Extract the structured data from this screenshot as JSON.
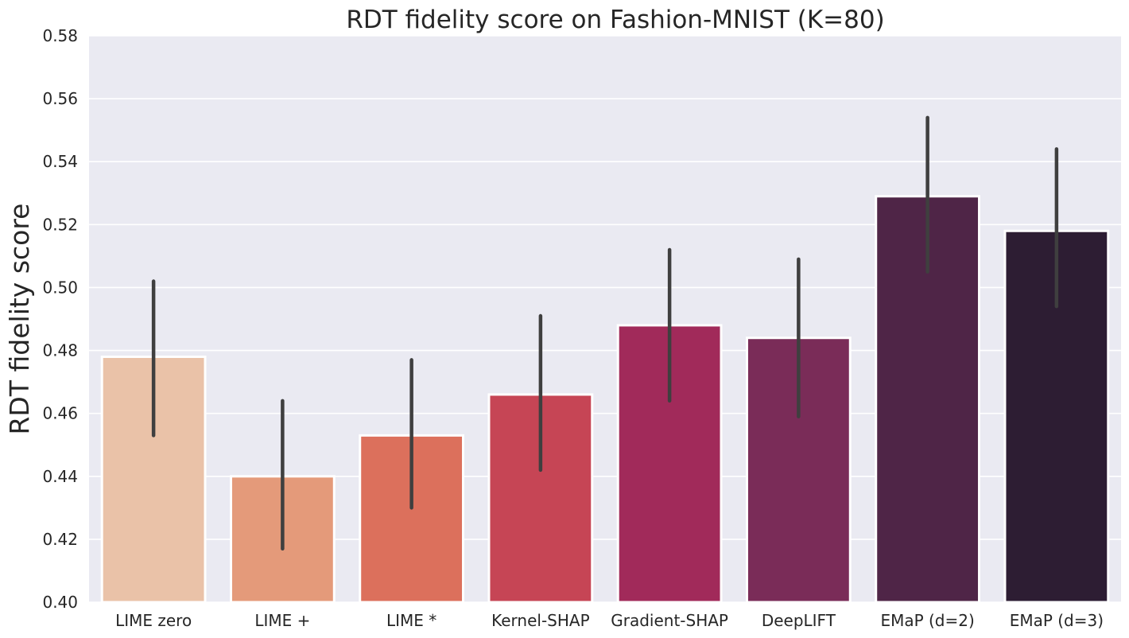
{
  "chart_data": {
    "type": "bar",
    "title": "RDT fidelity score on Fashion-MNIST (K=80)",
    "xlabel": "",
    "ylabel": "RDT fidelity score",
    "ylim": [
      0.4,
      0.58
    ],
    "yticks": [
      "0.40",
      "0.42",
      "0.44",
      "0.46",
      "0.48",
      "0.50",
      "0.52",
      "0.54",
      "0.56",
      "0.58"
    ],
    "grid": true,
    "categories": [
      "LIME zero",
      "LIME +",
      "LIME *",
      "Kernel-SHAP",
      "Gradient-SHAP",
      "DeepLIFT",
      "EMaP (d=2)",
      "EMaP (d=3)"
    ],
    "values": [
      0.478,
      0.44,
      0.453,
      0.466,
      0.488,
      0.484,
      0.529,
      0.518
    ],
    "error_low": [
      0.453,
      0.417,
      0.43,
      0.442,
      0.464,
      0.459,
      0.505,
      0.494
    ],
    "error_high": [
      0.502,
      0.464,
      0.477,
      0.491,
      0.512,
      0.509,
      0.554,
      0.544
    ],
    "colors": [
      "#eac2a8",
      "#e49a7a",
      "#dc705c",
      "#c64555",
      "#a12a5a",
      "#7a2c58",
      "#4f2547",
      "#2d1d33"
    ]
  }
}
